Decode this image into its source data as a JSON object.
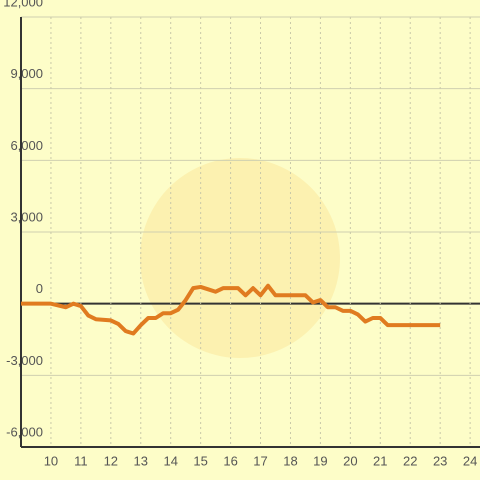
{
  "chart_data": {
    "type": "line",
    "x": [
      9,
      10,
      10.5,
      10.75,
      11,
      11.25,
      11.5,
      12,
      12.25,
      12.5,
      12.75,
      13,
      13.25,
      13.5,
      13.75,
      14,
      14.25,
      14.5,
      14.75,
      15,
      15.25,
      15.5,
      15.75,
      16.25,
      16.5,
      16.75,
      17,
      17.25,
      17.5,
      18.5,
      18.75,
      19,
      19.25,
      19.5,
      19.75,
      20,
      20.25,
      20.5,
      20.75,
      21,
      21.25,
      23
    ],
    "series": [
      {
        "color": "#e07b20",
        "values": [
          0,
          0,
          -150,
          0,
          -100,
          -500,
          -650,
          -700,
          -850,
          -1150,
          -1250,
          -900,
          -600,
          -600,
          -400,
          -400,
          -250,
          150,
          650,
          700,
          600,
          500,
          650,
          650,
          350,
          650,
          350,
          750,
          350,
          350,
          50,
          150,
          -150,
          -150,
          -300,
          -300,
          -450,
          -750,
          -600,
          -600,
          -900,
          -900
        ]
      }
    ],
    "xlim": [
      9,
      24.33
    ],
    "xticks": [
      10,
      11,
      12,
      13,
      14,
      15,
      16,
      17,
      18,
      19,
      20,
      21,
      22,
      23,
      24
    ],
    "ylim": [
      -6000,
      12000
    ],
    "yticks": [
      {
        "value": -6000,
        "label": "-6,000"
      },
      {
        "value": -3000,
        "label": "-3,000"
      },
      0,
      {
        "value": 3000,
        "label": "3,000"
      },
      {
        "value": 6000,
        "label": "6,000"
      },
      {
        "value": 9000,
        "label": "9,000"
      },
      {
        "value": 12000,
        "label": "12,000"
      }
    ],
    "grid": true
  }
}
